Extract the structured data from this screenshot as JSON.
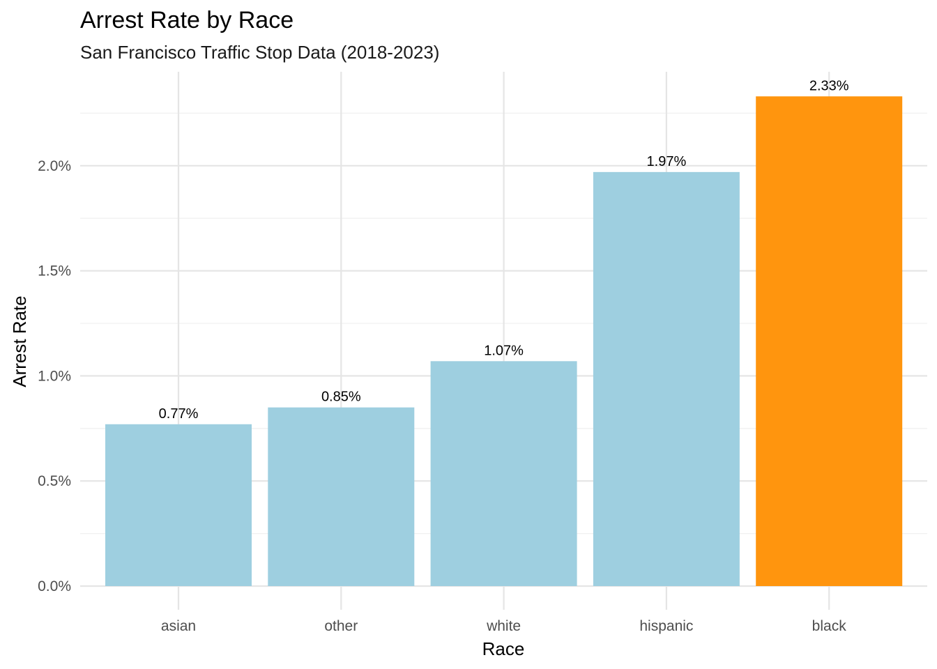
{
  "chart_data": {
    "type": "bar",
    "title": "Arrest Rate by Race",
    "subtitle": "San Francisco Traffic Stop Data (2018-2023)",
    "xlabel": "Race",
    "ylabel": "Arrest Rate",
    "categories": [
      "asian",
      "other",
      "white",
      "hispanic",
      "black"
    ],
    "values": [
      0.77,
      0.85,
      1.07,
      1.97,
      2.33
    ],
    "value_unit": "%",
    "data_labels": [
      "0.77%",
      "0.85%",
      "1.07%",
      "1.97%",
      "2.33%"
    ],
    "ylim": [
      0,
      2.5
    ],
    "y_ticks": [
      0,
      0.5,
      1.0,
      1.5,
      2.0
    ],
    "y_tick_labels": [
      "0.0%",
      "0.5%",
      "1.0%",
      "1.5%",
      "2.0%"
    ],
    "highlight_category": "black",
    "colors": {
      "default_bar": "#9ecfe0",
      "highlight_bar": "#ff950e",
      "gridline": "#e5e5e5"
    },
    "grid": true,
    "legend": "none"
  }
}
